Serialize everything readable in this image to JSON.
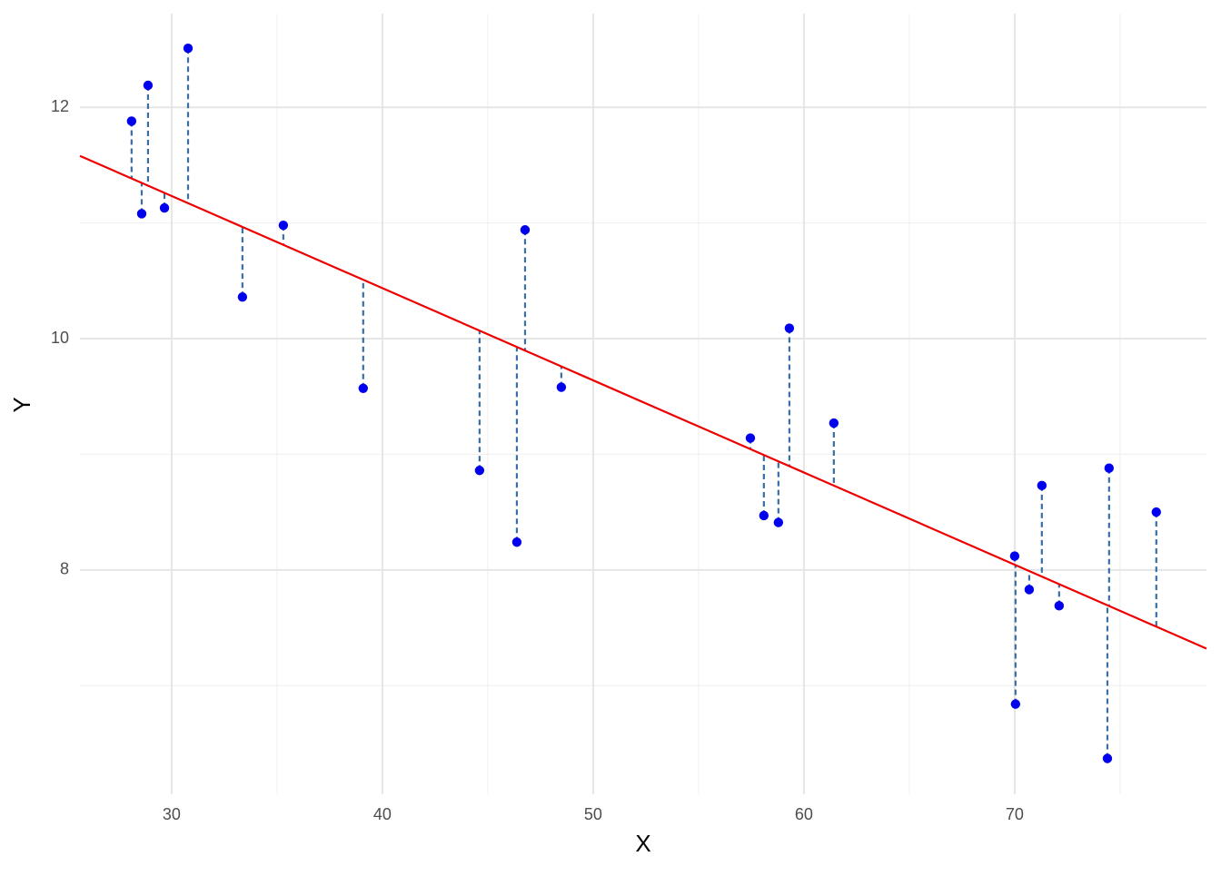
{
  "chart_data": {
    "type": "scatter",
    "x_label": "X",
    "y_label": "Y",
    "xlim": [
      25.65,
      79.1
    ],
    "ylim": [
      6.06,
      12.81
    ],
    "xticks": [
      30,
      40,
      50,
      60,
      70
    ],
    "yticks": [
      8,
      10,
      12
    ],
    "xminor": [
      35,
      45,
      55,
      65,
      75
    ],
    "yminor": [
      7,
      9,
      11
    ],
    "grid": true,
    "point_color": "#0000ee",
    "residual_color": "#3a6ea5",
    "line_color": "#ee0000",
    "x": [
      28.1,
      28.58,
      28.88,
      29.66,
      30.78,
      33.36,
      35.3,
      39.09,
      44.61,
      46.38,
      46.77,
      48.49,
      57.46,
      58.1,
      58.79,
      59.31,
      61.42,
      70.0,
      70.04,
      70.69,
      71.29,
      72.11,
      74.4,
      74.48,
      76.72
    ],
    "values": [
      11.88,
      11.08,
      12.19,
      11.13,
      12.51,
      10.36,
      10.98,
      9.57,
      8.86,
      8.24,
      10.94,
      9.58,
      9.14,
      8.47,
      8.41,
      10.09,
      9.27,
      8.12,
      6.84,
      7.83,
      8.73,
      7.69,
      6.37,
      8.88,
      8.5
    ],
    "fit_line": {
      "x": [
        25.65,
        79.1
      ],
      "y": [
        11.58,
        7.32
      ]
    }
  }
}
